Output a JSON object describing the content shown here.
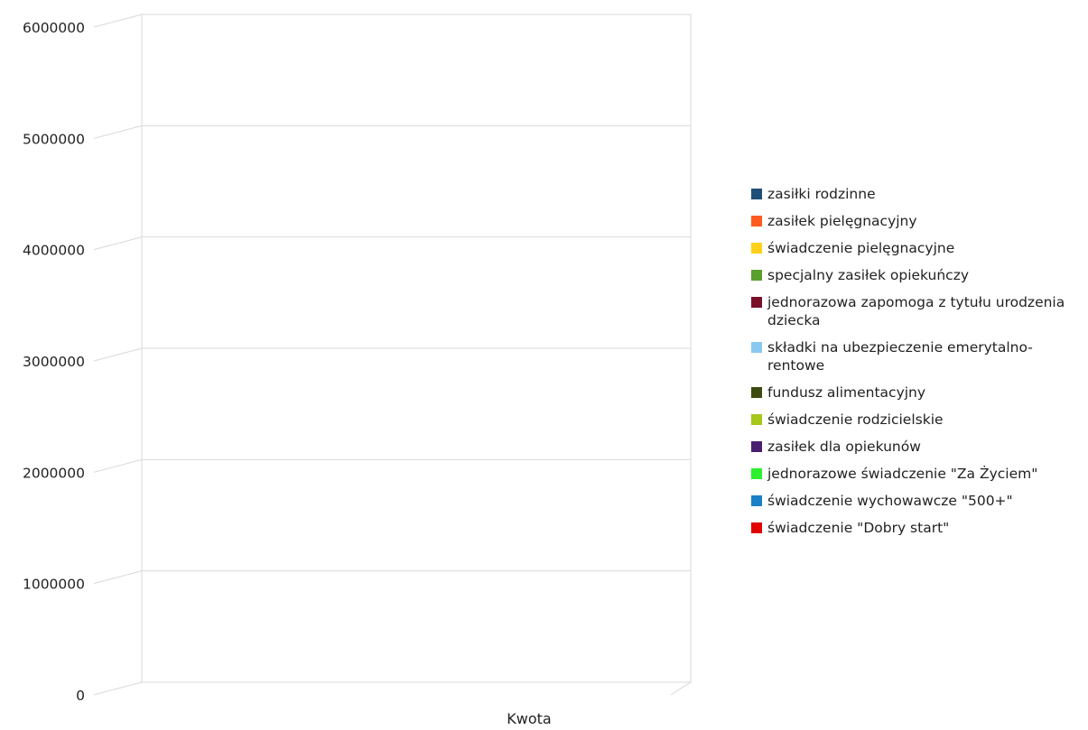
{
  "chart_data": {
    "type": "bar",
    "subtype": "3d-clustered-column",
    "title": "",
    "xlabel": "Kwota",
    "ylabel": "",
    "categories": [
      "Kwota"
    ],
    "y_ticks": [
      "0",
      "1000000",
      "2000000",
      "3000000",
      "4000000",
      "5000000",
      "6000000"
    ],
    "ylim": [
      0,
      6000000
    ],
    "grid": true,
    "legend_position": "right",
    "series": [
      {
        "name": "zasiłki rodzinne",
        "color": "#1f4e79",
        "values": [
          0
        ]
      },
      {
        "name": "zasiłek pielęgnacyjny",
        "color": "#ff5a1f",
        "values": [
          0
        ]
      },
      {
        "name": "świadczenie pielęgnacyjne",
        "color": "#ffd11a",
        "values": [
          0
        ]
      },
      {
        "name": "specjalny zasiłek opiekuńczy",
        "color": "#5aa02c",
        "values": [
          0
        ]
      },
      {
        "name": "jednorazowa zapomoga z tytułu urodzenia dziecka",
        "color": "#7a0f2a",
        "values": [
          0
        ]
      },
      {
        "name": "składki na ubezpieczenie emerytalno-rentowe",
        "color": "#8ac8f0",
        "values": [
          0
        ]
      },
      {
        "name": "fundusz alimentacyjny",
        "color": "#3d4a10",
        "values": [
          0
        ]
      },
      {
        "name": "świadczenie rodzicielskie",
        "color": "#a6c81a",
        "values": [
          0
        ]
      },
      {
        "name": "zasiłek dla opiekunów",
        "color": "#4b1f6f",
        "values": [
          0
        ]
      },
      {
        "name": "jednorazowe świadczenie \"Za Życiem\"",
        "color": "#2ef02e",
        "values": [
          0
        ]
      },
      {
        "name": "świadczenie wychowawcze \"500+\"",
        "color": "#1a80c8",
        "values": [
          0
        ]
      },
      {
        "name": "świadczenie \"Dobry start\"",
        "color": "#e00000",
        "values": [
          0
        ]
      }
    ]
  }
}
